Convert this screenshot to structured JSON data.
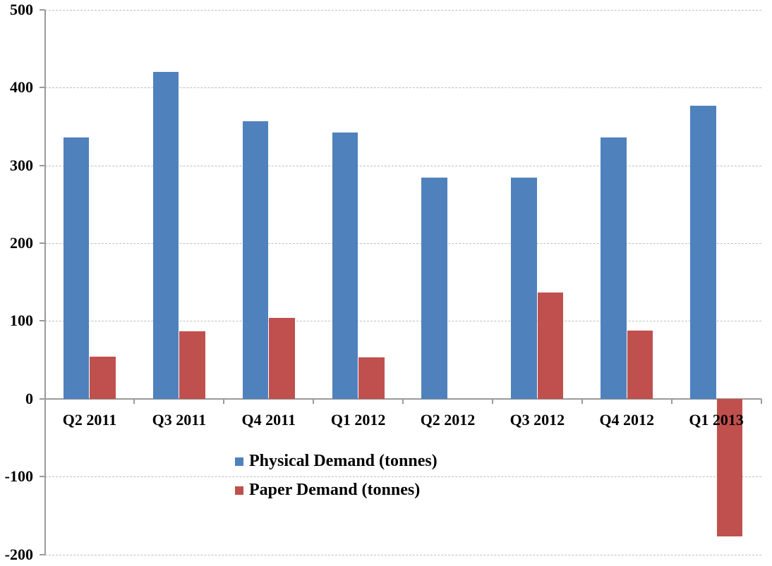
{
  "chart_data": {
    "type": "bar",
    "title": "",
    "xlabel": "",
    "ylabel": "",
    "categories": [
      "Q2 2011",
      "Q3 2011",
      "Q4 2011",
      "Q1 2012",
      "Q2 2012",
      "Q3 2012",
      "Q4 2012",
      "Q1 2013"
    ],
    "series": [
      {
        "name": "Physical Demand (tonnes)",
        "color": "#4F81BD",
        "values": [
          336,
          420,
          357,
          342,
          284,
          284,
          336,
          377
        ]
      },
      {
        "name": "Paper Demand (tonnes)",
        "color": "#C0504D",
        "values": [
          54,
          87,
          104,
          53,
          0,
          137,
          88,
          -177
        ]
      }
    ],
    "ylim": [
      -200,
      500
    ],
    "yticks": [
      500,
      400,
      300,
      200,
      100,
      0,
      -100,
      -200
    ],
    "ytick_interval": 100,
    "grid": "horizontal-dashed",
    "legend_position": "inside-bottom-center",
    "legend_orientation": "vertical"
  },
  "colors": {
    "background": "#FFFFFF",
    "axis": "#9A9A9A",
    "gridline": "#BFBFBF",
    "label_text": "#000000"
  }
}
